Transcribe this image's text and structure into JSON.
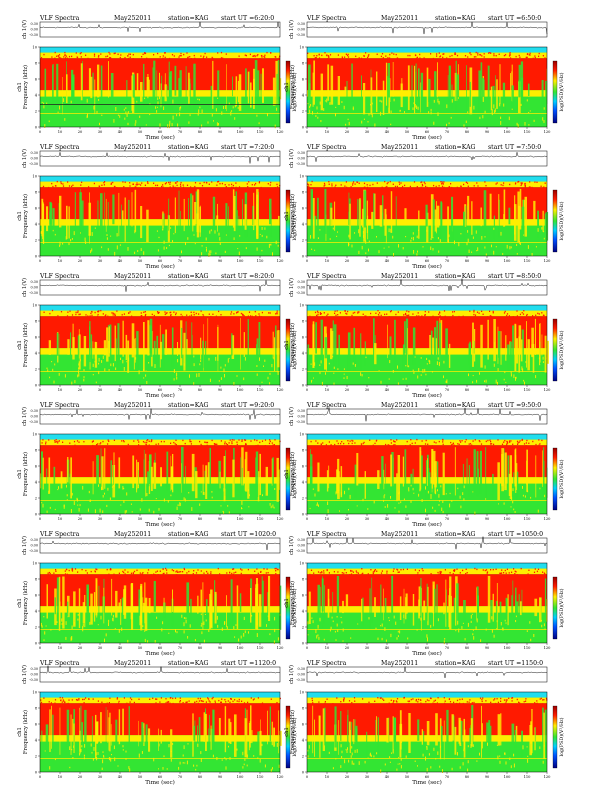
{
  "page": {
    "background": "#ffffff"
  },
  "common": {
    "title_left": "VLF Spectra",
    "date": "May252011",
    "station": "station=KAG",
    "start_prefix": "start UT =",
    "ch_axis_label": "ch 1(V)",
    "freq_axis_label_1": "ch1",
    "freq_axis_label_2": "Frequency (kHz)",
    "colorbar_label": "log(PSD)(V²/Hz)",
    "time_axis_label": "Time (sec)"
  },
  "chart_data": [
    {
      "type": "heatmap",
      "start_ut": "6:20:0",
      "seed": 11,
      "line_2_8": true,
      "xlim": [
        0,
        120
      ],
      "ylim": [
        0,
        10
      ],
      "ch_ylim": [
        -0.3,
        0.3
      ]
    },
    {
      "type": "heatmap",
      "start_ut": "6:50:0",
      "seed": 23,
      "line_2_8": false,
      "xlim": [
        0,
        120
      ],
      "ylim": [
        0,
        10
      ],
      "ch_ylim": [
        -0.3,
        0.3
      ]
    },
    {
      "type": "heatmap",
      "start_ut": "7:20:0",
      "seed": 37,
      "line_2_8": false,
      "xlim": [
        0,
        120
      ],
      "ylim": [
        0,
        10
      ],
      "ch_ylim": [
        -0.3,
        0.3
      ]
    },
    {
      "type": "heatmap",
      "start_ut": "7:50:0",
      "seed": 41,
      "line_2_8": false,
      "xlim": [
        0,
        120
      ],
      "ylim": [
        0,
        10
      ],
      "ch_ylim": [
        -0.3,
        0.3
      ]
    },
    {
      "type": "heatmap",
      "start_ut": "8:20:0",
      "seed": 53,
      "line_2_8": false,
      "xlim": [
        0,
        120
      ],
      "ylim": [
        0,
        10
      ],
      "ch_ylim": [
        -0.3,
        0.3
      ]
    },
    {
      "type": "heatmap",
      "start_ut": "8:50:0",
      "seed": 67,
      "line_2_8": false,
      "xlim": [
        0,
        120
      ],
      "ylim": [
        0,
        10
      ],
      "ch_ylim": [
        -0.3,
        0.3
      ]
    },
    {
      "type": "heatmap",
      "start_ut": "9:20:0",
      "seed": 71,
      "line_2_8": false,
      "xlim": [
        0,
        120
      ],
      "ylim": [
        0,
        10
      ],
      "ch_ylim": [
        -0.3,
        0.3
      ]
    },
    {
      "type": "heatmap",
      "start_ut": "9:50:0",
      "seed": 83,
      "line_2_8": false,
      "xlim": [
        0,
        120
      ],
      "ylim": [
        0,
        10
      ],
      "ch_ylim": [
        -0.3,
        0.3
      ]
    },
    {
      "type": "heatmap",
      "start_ut": "1020:0",
      "seed": 97,
      "line_2_8": false,
      "xlim": [
        0,
        120
      ],
      "ylim": [
        0,
        10
      ],
      "ch_ylim": [
        -0.3,
        0.3
      ]
    },
    {
      "type": "heatmap",
      "start_ut": "1050:0",
      "seed": 101,
      "line_2_8": false,
      "xlim": [
        0,
        120
      ],
      "ylim": [
        0,
        10
      ],
      "ch_ylim": [
        -0.3,
        0.3
      ]
    },
    {
      "type": "heatmap",
      "start_ut": "1120:0",
      "seed": 113,
      "line_2_8": false,
      "xlim": [
        0,
        120
      ],
      "ylim": [
        0,
        10
      ],
      "ch_ylim": [
        -0.3,
        0.3
      ]
    },
    {
      "type": "heatmap",
      "start_ut": "1150:0",
      "seed": 127,
      "line_2_8": false,
      "xlim": [
        0,
        120
      ],
      "ylim": [
        0,
        10
      ],
      "ch_ylim": [
        -0.3,
        0.3
      ]
    }
  ],
  "x_ticks": [
    "0",
    "10",
    "20",
    "30",
    "40",
    "50",
    "60",
    "70",
    "80",
    "90",
    "100",
    "110",
    "120"
  ],
  "freq_ticks": [
    "0",
    "2",
    "4",
    "6",
    "8",
    "10"
  ],
  "ch_ticks": [
    "0.30",
    "0.00",
    "-0.30"
  ],
  "colors": {
    "red": "#ff1a00",
    "yellow": "#ffee00",
    "green": "#33e533",
    "cyan": "#22ddee",
    "line": "#000000"
  }
}
